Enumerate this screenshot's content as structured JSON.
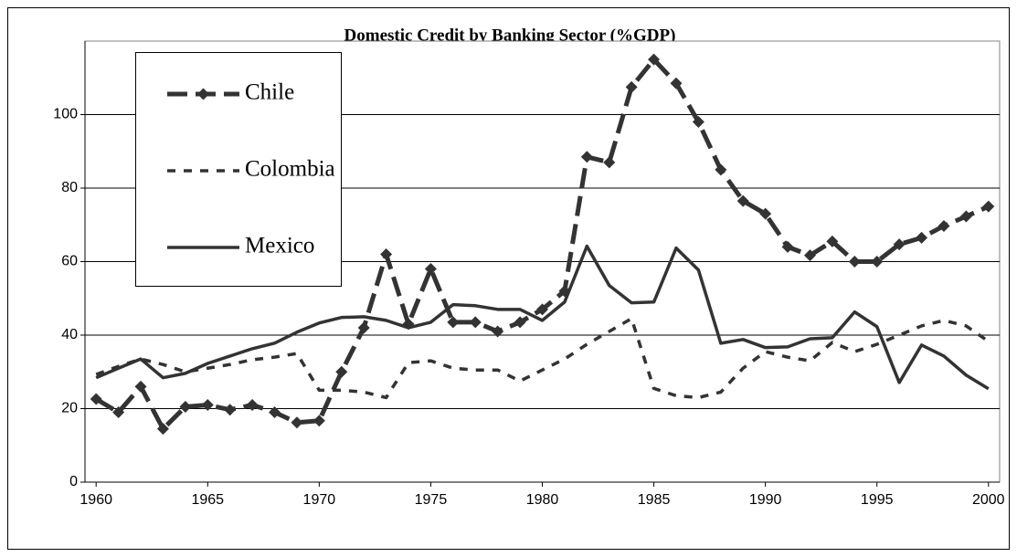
{
  "chart_data": {
    "type": "line",
    "title": "Domestic Credit by Banking Sector (%GDP)",
    "x": [
      1960,
      1961,
      1962,
      1963,
      1964,
      1965,
      1966,
      1967,
      1968,
      1969,
      1970,
      1971,
      1972,
      1973,
      1974,
      1975,
      1976,
      1977,
      1978,
      1979,
      1980,
      1981,
      1982,
      1983,
      1984,
      1985,
      1986,
      1987,
      1988,
      1989,
      1990,
      1991,
      1992,
      1993,
      1994,
      1995,
      1996,
      1997,
      1998,
      1999,
      2000
    ],
    "xlim": [
      1959.5,
      2000.5
    ],
    "xticks": [
      1960,
      1965,
      1970,
      1975,
      1980,
      1985,
      1990,
      1995,
      2000
    ],
    "ylim": [
      0,
      120
    ],
    "yticks": [
      0,
      20,
      40,
      60,
      80,
      100
    ],
    "grid": true,
    "legend": "top-left",
    "series": [
      {
        "name": "Chile",
        "color": "#333333",
        "line_style": "dashed",
        "marker": "diamond",
        "values": [
          22.6,
          19,
          26,
          14.5,
          20.5,
          21,
          19.7,
          21,
          19,
          16.2,
          16.7,
          30,
          42,
          62,
          43,
          58,
          43.5,
          43.5,
          41,
          43.5,
          47,
          52,
          88.5,
          87,
          107.5,
          115,
          108.5,
          98,
          85,
          76.5,
          73,
          64,
          61.7,
          65.5,
          60,
          60,
          64.7,
          66.5,
          69.7,
          72.3,
          75
        ]
      },
      {
        "name": "Colombia",
        "color": "#333333",
        "line_style": "dotted",
        "values": [
          29.3,
          31.5,
          33.5,
          32,
          30,
          31,
          32,
          33.3,
          34,
          35,
          25,
          25,
          24.5,
          23,
          32.5,
          33,
          31,
          30.5,
          30.5,
          27.5,
          30.5,
          33.5,
          37.5,
          41,
          44.5,
          25.5,
          23.5,
          23,
          24.5,
          31,
          35.5,
          34,
          33,
          38,
          35.5,
          37.5,
          40,
          42.5,
          44,
          42.5,
          38.3
        ]
      },
      {
        "name": "Mexico",
        "color": "#333333",
        "line_style": "solid",
        "values": [
          28.4,
          31,
          33.5,
          28.4,
          29.6,
          32.3,
          34.3,
          36.3,
          37.8,
          40.8,
          43.3,
          44.8,
          45,
          44,
          42,
          43.5,
          48.3,
          48,
          47,
          47,
          44,
          49,
          64.2,
          53.5,
          48.8,
          49,
          63.7,
          57.7,
          37.8,
          38.8,
          36.6,
          36.8,
          39,
          39.3,
          46.3,
          42.3,
          27.1,
          37.3,
          34.3,
          29.1,
          25.4
        ]
      }
    ]
  }
}
